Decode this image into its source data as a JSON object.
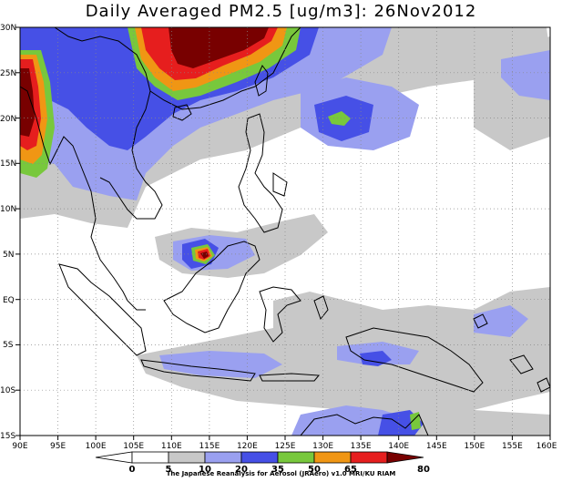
{
  "title": "Daily Averaged PM2.5 [ug/m3]: 26Nov2012",
  "credit": "The Japanese Reanalysis for Aerosol (JRAero) v1.0 MRI/KU RIAM",
  "map": {
    "lon_labels": [
      "90E",
      "95E",
      "100E",
      "105E",
      "110E",
      "115E",
      "120E",
      "125E",
      "130E",
      "135E",
      "140E",
      "145E",
      "150E",
      "155E",
      "160E"
    ],
    "lat_labels": [
      "30N",
      "25N",
      "20N",
      "15N",
      "10N",
      "5N",
      "EQ",
      "5S",
      "10S",
      "15S"
    ],
    "lon_range": [
      90,
      160
    ],
    "lat_range": [
      -15,
      30
    ],
    "gridlines": "dotted"
  },
  "colorbar": {
    "levels": [
      "0",
      "5",
      "10",
      "20",
      "35",
      "50",
      "65",
      "80"
    ],
    "colors": [
      "#ffffff",
      "#ffffff",
      "#c8c8c8",
      "#9aa0f0",
      "#4650e6",
      "#78c83c",
      "#f09614",
      "#e61e1e",
      "#780000"
    ]
  },
  "pm25_regions": [
    {
      "area": "South China / Taiwan",
      "max_level": "80+"
    },
    {
      "area": "Myanmar / Bay of Bengal",
      "max_level": "80+"
    },
    {
      "area": "Borneo (Sarawak)",
      "max_level": "80+"
    },
    {
      "area": "Philippine Sea",
      "max_level": "35-50"
    }
  ]
}
